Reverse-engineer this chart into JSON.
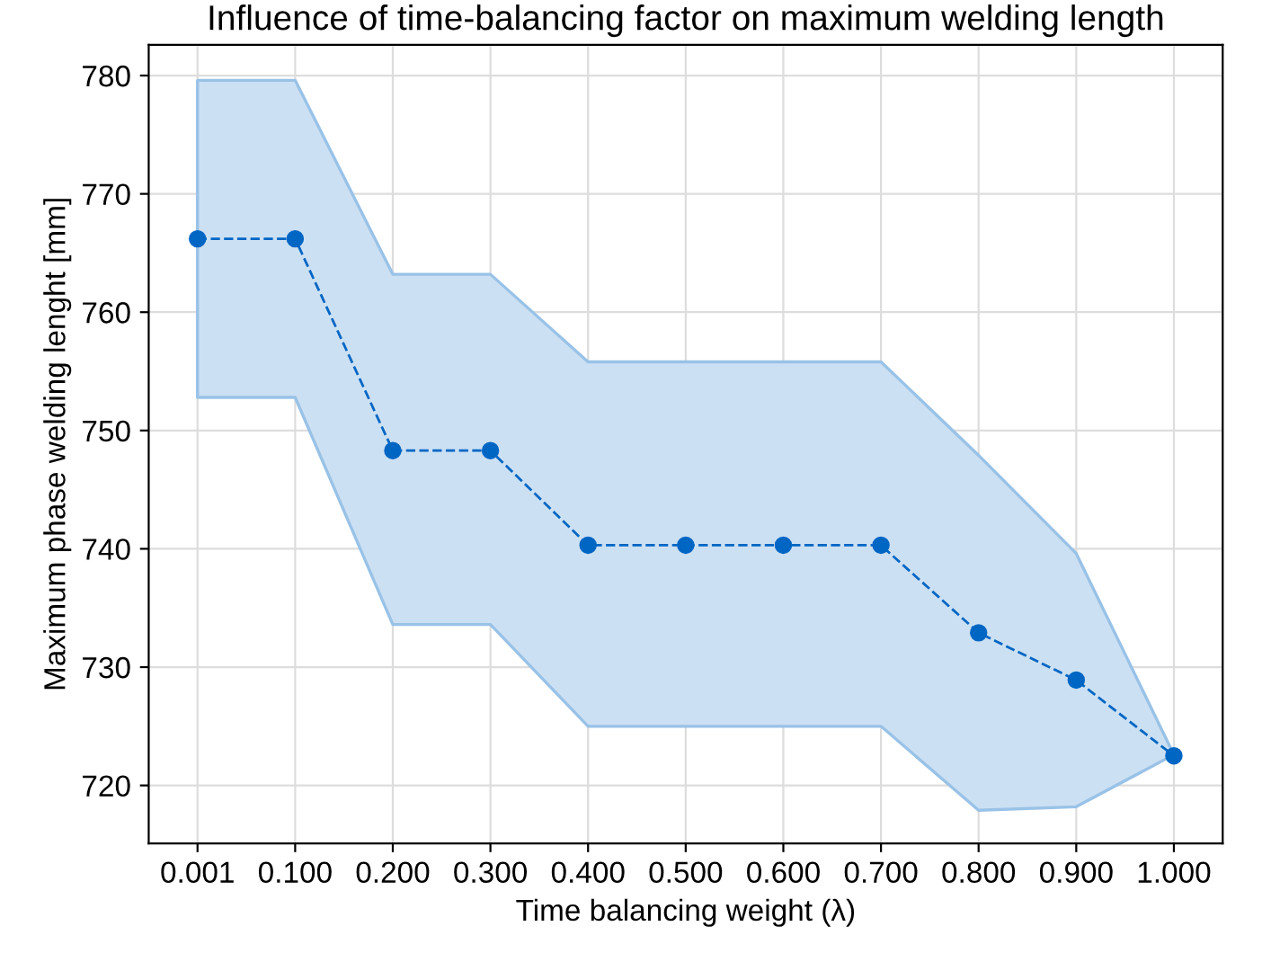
{
  "chart_data": {
    "type": "line",
    "title": "Influence of time-balancing factor on maximum welding length",
    "xlabel": "Time balancing weight (λ)",
    "ylabel": "Maximum phase welding lenght [mm]",
    "categories": [
      "0.001",
      "0.100",
      "0.200",
      "0.300",
      "0.400",
      "0.500",
      "0.600",
      "0.700",
      "0.800",
      "0.900",
      "1.000"
    ],
    "series": [
      {
        "color": "#0066c4",
        "values": [
          766.2,
          766.2,
          748.3,
          748.3,
          740.3,
          740.3,
          740.3,
          740.3,
          732.9,
          728.9,
          722.5
        ],
        "lower": [
          752.8,
          752.8,
          733.6,
          733.6,
          725.0,
          725.0,
          725.0,
          725.0,
          717.9,
          718.2,
          722.6
        ],
        "upper": [
          779.6,
          779.6,
          763.2,
          763.2,
          755.8,
          755.8,
          755.8,
          755.8,
          747.9,
          739.6,
          722.6
        ]
      }
    ],
    "ylim": [
      715.1,
      782.6
    ],
    "yticks": [
      720,
      730,
      740,
      750,
      760,
      770,
      780
    ],
    "grid": true,
    "marker": "circle",
    "line_style": "dashed"
  }
}
